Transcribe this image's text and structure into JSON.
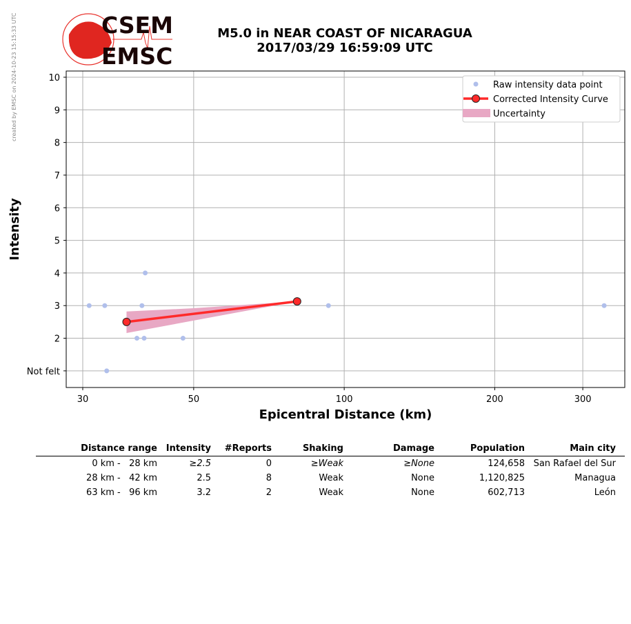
{
  "watermark": "created by EMSC on 2024-10-23 15:15:33 UTC",
  "logo": {
    "top": "CSEM",
    "bottom": "EMSC"
  },
  "title": {
    "line1": "M5.0 in NEAR COAST OF NICARAGUA",
    "line2": "2017/03/29 16:59:09 UTC"
  },
  "chart_data": {
    "type": "scatter",
    "xlabel": "Epicentral Distance (km)",
    "ylabel": "Intensity",
    "xscale": "log",
    "xlim": [
      27.8,
      364
    ],
    "ylim": [
      0.49,
      10.19
    ],
    "xticks": [
      30,
      50,
      100,
      200,
      300
    ],
    "yticks": [
      {
        "v": 1,
        "label": "Not felt"
      },
      {
        "v": 2,
        "label": "2"
      },
      {
        "v": 3,
        "label": "3"
      },
      {
        "v": 4,
        "label": "4"
      },
      {
        "v": 5,
        "label": "5"
      },
      {
        "v": 6,
        "label": "6"
      },
      {
        "v": 7,
        "label": "7"
      },
      {
        "v": 8,
        "label": "8"
      },
      {
        "v": 9,
        "label": "9"
      },
      {
        "v": 10,
        "label": "10"
      }
    ],
    "grid": true,
    "legend": {
      "placement": "top-right",
      "entries": [
        "Raw intensity data point",
        "Corrected Intensity Curve",
        "Uncertainty"
      ]
    },
    "raw_points": [
      [
        30.9,
        3
      ],
      [
        33.2,
        3
      ],
      [
        33.5,
        1
      ],
      [
        40.0,
        4
      ],
      [
        39.4,
        3
      ],
      [
        38.5,
        2
      ],
      [
        39.8,
        2
      ],
      [
        47.6,
        2
      ],
      [
        93,
        3
      ],
      [
        331,
        3
      ]
    ],
    "curve": [
      [
        36.7,
        2.5
      ],
      [
        80.5,
        3.13
      ]
    ],
    "uncertainty": {
      "upper": [
        [
          36.7,
          2.82
        ],
        [
          50,
          2.92
        ],
        [
          80.5,
          3.13
        ]
      ],
      "lower": [
        [
          36.7,
          2.16
        ],
        [
          80.5,
          3.13
        ]
      ]
    },
    "colors": {
      "raw": "#b0bfeb",
      "curve": "#ff2a2a",
      "band": "#e8a8c4"
    }
  },
  "table": {
    "headers": [
      "Distance range",
      "Intensity",
      "#Reports",
      "Shaking",
      "Damage",
      "Population",
      "Main city"
    ],
    "rows": [
      [
        "0 km -   28 km",
        "≥2.5",
        "0",
        "≥Weak",
        "≥None",
        "124,658",
        "San Rafael del Sur"
      ],
      [
        "28 km -   42 km",
        "2.5",
        "8",
        "Weak",
        "None",
        "1,120,825",
        "Managua"
      ],
      [
        "63 km -   96 km",
        "3.2",
        "2",
        "Weak",
        "None",
        "602,713",
        "León"
      ]
    ]
  }
}
